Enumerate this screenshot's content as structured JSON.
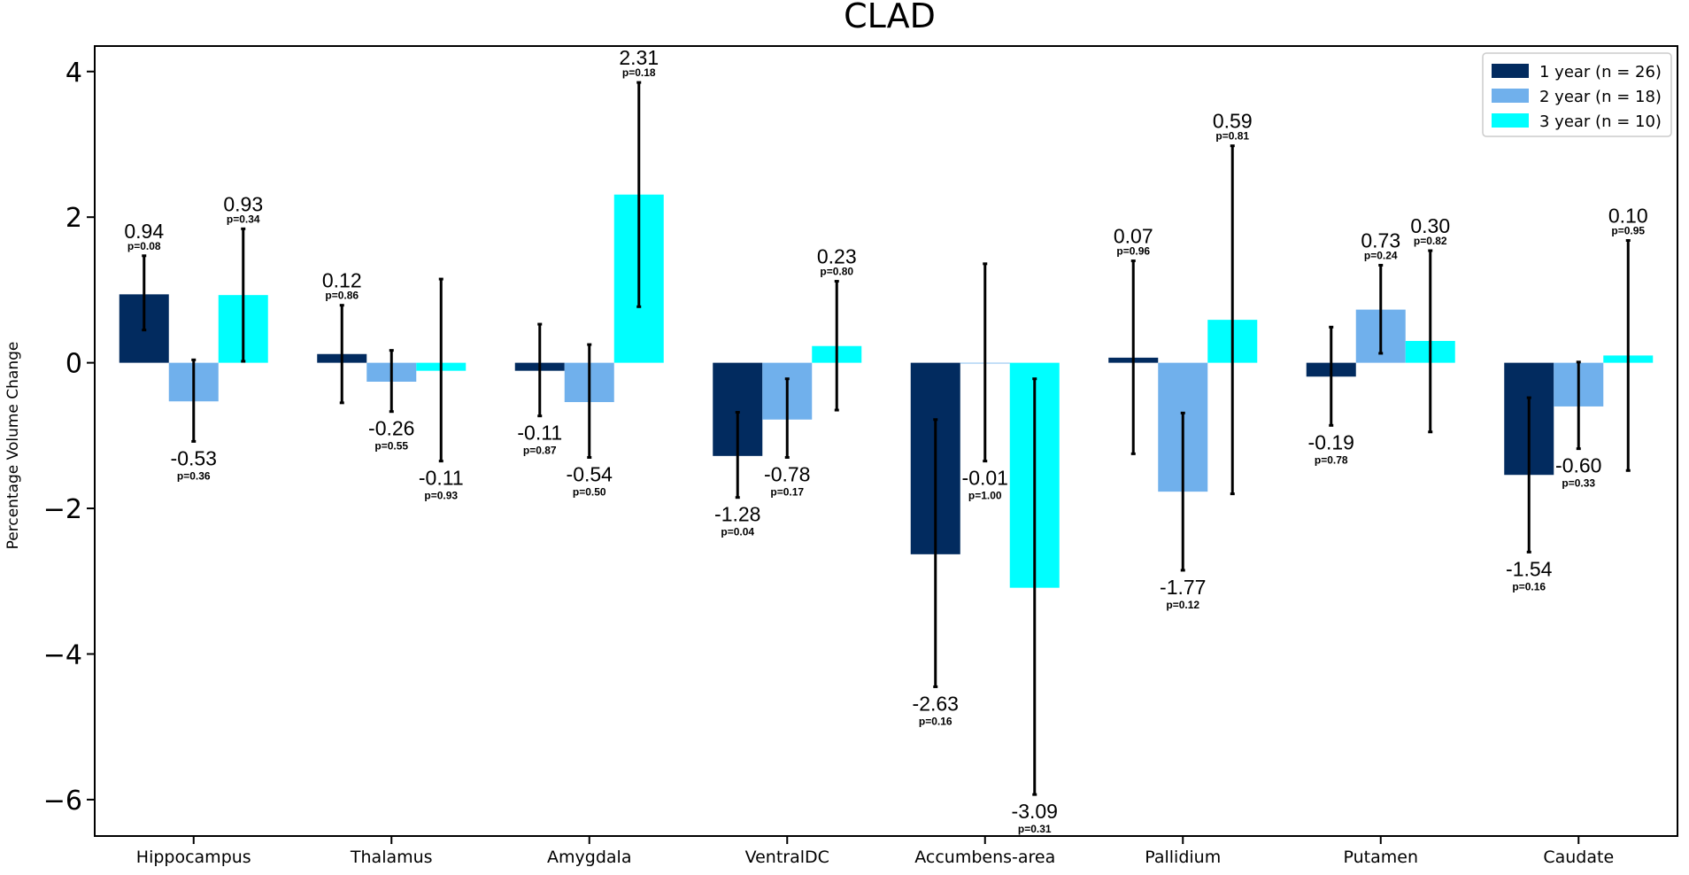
{
  "chart_data": {
    "type": "bar",
    "title": "CLAD",
    "ylabel": "Percentage Volume Change",
    "xlabel": "",
    "ylim": [
      -6.5,
      4.35
    ],
    "yticks": [
      4,
      2,
      0,
      -2,
      -4,
      -6
    ],
    "ytick_labels": [
      "4",
      "2",
      "0",
      "−2",
      "−4",
      "−6"
    ],
    "categories": [
      "Hippocampus",
      "Thalamus",
      "Amygdala",
      "VentralDC",
      "Accumbens-area",
      "Pallidium",
      "Putamen",
      "Caudate"
    ],
    "legend_position": "top-right",
    "highlight_color": "#cc0000",
    "series": [
      {
        "name": "1 year (n = 26)",
        "color": "#022b5f",
        "values": [
          0.94,
          0.12,
          -0.11,
          -1.28,
          -2.63,
          0.07,
          -0.19,
          -1.54
        ],
        "err_low": [
          0.45,
          -0.55,
          -0.73,
          -1.85,
          -4.45,
          -1.25,
          -0.86,
          -2.6
        ],
        "err_high": [
          1.47,
          0.79,
          0.53,
          -0.68,
          -0.78,
          1.4,
          0.49,
          -0.48
        ],
        "value_labels": [
          "0.94",
          "0.12",
          "-0.11",
          "-1.28",
          "-2.63",
          "0.07",
          "-0.19",
          "-1.54"
        ],
        "p_labels": [
          "p=0.08",
          "p=0.86",
          "p=0.87",
          "p=0.04",
          "p=0.16",
          "p=0.96",
          "p=0.78",
          "p=0.16"
        ],
        "label_pos": [
          "above",
          "above",
          "below",
          "below",
          "below",
          "above",
          "below",
          "below"
        ],
        "significant": [
          false,
          false,
          false,
          true,
          false,
          false,
          false,
          false
        ]
      },
      {
        "name": "2 year (n = 18)",
        "color": "#70b0ec",
        "values": [
          -0.53,
          -0.26,
          -0.54,
          -0.78,
          -0.01,
          -1.77,
          0.73,
          -0.6
        ],
        "err_low": [
          -1.08,
          -0.67,
          -1.3,
          -1.3,
          -1.35,
          -2.85,
          0.13,
          -1.18
        ],
        "err_high": [
          0.04,
          0.17,
          0.25,
          -0.22,
          1.36,
          -0.69,
          1.34,
          0.01
        ],
        "value_labels": [
          "-0.53",
          "-0.26",
          "-0.54",
          "-0.78",
          "-0.01",
          "-1.77",
          "0.73",
          "-0.60"
        ],
        "p_labels": [
          "p=0.36",
          "p=0.55",
          "p=0.50",
          "p=0.17",
          "p=1.00",
          "p=0.12",
          "p=0.24",
          "p=0.33"
        ],
        "label_pos": [
          "below",
          "below",
          "below",
          "below",
          "below",
          "below",
          "above",
          "below"
        ],
        "significant": [
          false,
          false,
          false,
          false,
          false,
          false,
          false,
          false
        ]
      },
      {
        "name": "3 year (n = 10)",
        "color": "#00ffff",
        "values": [
          0.93,
          -0.11,
          2.31,
          0.23,
          -3.09,
          0.59,
          0.3,
          0.1
        ],
        "err_low": [
          0.02,
          -1.35,
          0.77,
          -0.65,
          -5.93,
          -1.8,
          -0.95,
          -1.48
        ],
        "err_high": [
          1.84,
          1.15,
          3.85,
          1.12,
          -0.22,
          2.98,
          1.54,
          1.68
        ],
        "value_labels": [
          "0.93",
          "-0.11",
          "2.31",
          "0.23",
          "-3.09",
          "0.59",
          "0.30",
          "0.10"
        ],
        "p_labels": [
          "p=0.34",
          "p=0.93",
          "p=0.18",
          "p=0.80",
          "p=0.31",
          "p=0.81",
          "p=0.82",
          "p=0.95"
        ],
        "label_pos": [
          "above",
          "below",
          "above",
          "above",
          "below",
          "above",
          "above",
          "above"
        ],
        "significant": [
          false,
          false,
          false,
          false,
          false,
          false,
          false,
          false
        ]
      }
    ]
  }
}
